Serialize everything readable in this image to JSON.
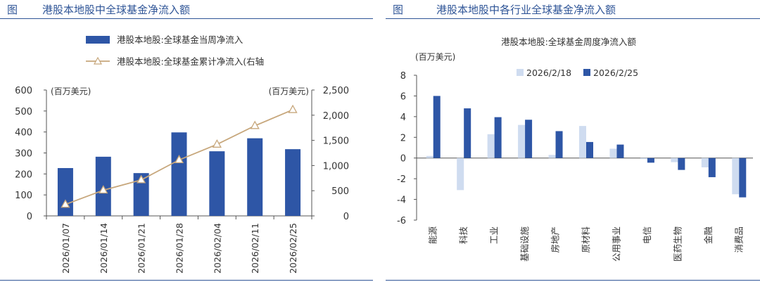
{
  "left": {
    "fig_label": "图",
    "title": "港股本地股中全球基金净流入额",
    "chart_data": {
      "type": "bar+line",
      "categories": [
        "2026/01/07",
        "2026/01/14",
        "2026/01/21",
        "2026/01/28",
        "2026/02/04",
        "2026/02/11",
        "2026/02/25"
      ],
      "series": [
        {
          "name": "港股本地股:全球基金当周净流入",
          "type": "bar",
          "axis": "left",
          "values": [
            228,
            282,
            204,
            398,
            308,
            370,
            318
          ]
        },
        {
          "name": "港股本地股:全球基金累计净流入(右轴",
          "type": "line",
          "axis": "right",
          "values": [
            228,
            510,
            714,
            1112,
            1420,
            1790,
            2108
          ]
        }
      ],
      "left_axis": {
        "unit": "(百万美元)",
        "ylim": [
          0,
          600
        ],
        "ticks": [
          "0",
          "100",
          "200",
          "300",
          "400",
          "500",
          "600"
        ]
      },
      "right_axis": {
        "unit": "(百万美元)",
        "ylim": [
          0,
          2500
        ],
        "ticks": [
          "0",
          "500",
          "1,000",
          "1,500",
          "2,000",
          "2,500"
        ]
      },
      "colors": {
        "bar": "#2e56a6",
        "line": "#c7a77c",
        "marker_fill": "#ffffff"
      },
      "legend_position": "top"
    }
  },
  "right": {
    "fig_label": "图",
    "title": "港股本地股中各行业全球基金净流入额",
    "chart_data": {
      "type": "bar",
      "title": "港股本地股:全球基金周度净流入额",
      "unit": "(百万美元)",
      "categories": [
        "能源",
        "科技",
        "工业",
        "基础设施",
        "房地产",
        "原材料",
        "公用事业",
        "电信",
        "医药生物",
        "金融",
        "消费品"
      ],
      "series": [
        {
          "name": "2026/2/18",
          "values": [
            0.2,
            -3.1,
            2.3,
            3.2,
            0.3,
            3.1,
            0.9,
            -0.1,
            -0.4,
            -0.9,
            -3.5
          ]
        },
        {
          "name": "2026/2/25",
          "values": [
            6.0,
            4.8,
            3.95,
            3.7,
            2.6,
            1.55,
            1.3,
            -0.45,
            -1.15,
            -1.85,
            -3.8
          ]
        }
      ],
      "ylim": [
        -6,
        8
      ],
      "ticks": [
        "-6",
        "-4",
        "-2",
        "0",
        "2",
        "4",
        "6",
        "8"
      ],
      "colors": {
        "s1": "#cfdcf0",
        "s2": "#2e56a6"
      },
      "legend_position": "top"
    }
  }
}
